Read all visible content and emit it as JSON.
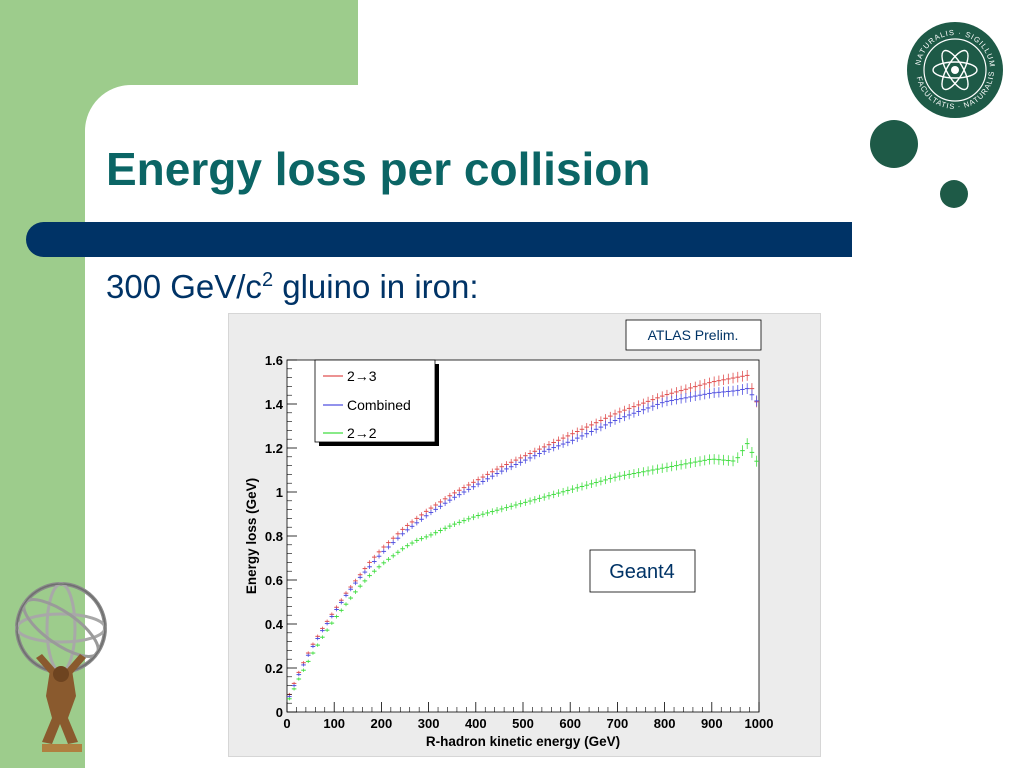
{
  "slide": {
    "title": "Energy loss per collision",
    "subtitle_main": "300 GeV/c",
    "subtitle_sup": "2",
    "subtitle_rest": " gluino in iron:",
    "seal_text_top": "NATURALIS · SIGILLUM",
    "seal_text_bottom": "FACULTATIS · NATURALIS",
    "colors": {
      "background": "#9dcc8c",
      "title": "#0b6565",
      "bar": "#003366",
      "dots": "#1e5a47"
    }
  },
  "chart_data": {
    "type": "scatter",
    "xlabel": "R-hadron kinetic energy (GeV)",
    "ylabel": "Energy loss (GeV)",
    "xlim": [
      0,
      1000
    ],
    "ylim": [
      0,
      1.6
    ],
    "xticks": [
      "0",
      "100",
      "200",
      "300",
      "400",
      "500",
      "600",
      "700",
      "800",
      "900",
      "1000"
    ],
    "yticks": [
      "0",
      "0.2",
      "0.4",
      "0.6",
      "0.8",
      "1",
      "1.2",
      "1.4",
      "1.6"
    ],
    "legend_position": "top-left",
    "annotation_top": "ATLAS Prelim.",
    "annotation_mid": "Geant4",
    "series": [
      {
        "name": "2→3",
        "color": "#e05050",
        "x": [
          5,
          25,
          50,
          75,
          100,
          125,
          150,
          175,
          200,
          225,
          250,
          275,
          300,
          350,
          400,
          450,
          500,
          550,
          600,
          650,
          700,
          750,
          800,
          850,
          900,
          950,
          975,
          1000
        ],
        "y": [
          0.08,
          0.18,
          0.29,
          0.38,
          0.46,
          0.54,
          0.61,
          0.68,
          0.74,
          0.79,
          0.84,
          0.88,
          0.92,
          0.99,
          1.05,
          1.11,
          1.16,
          1.21,
          1.26,
          1.31,
          1.36,
          1.4,
          1.44,
          1.47,
          1.5,
          1.52,
          1.53,
          1.38
        ]
      },
      {
        "name": "Combined",
        "color": "#5050e0",
        "x": [
          5,
          25,
          50,
          75,
          100,
          125,
          150,
          175,
          200,
          225,
          250,
          275,
          300,
          350,
          400,
          450,
          500,
          550,
          600,
          650,
          700,
          750,
          800,
          850,
          900,
          950,
          975,
          1000
        ],
        "y": [
          0.07,
          0.17,
          0.28,
          0.37,
          0.45,
          0.53,
          0.6,
          0.66,
          0.72,
          0.77,
          0.82,
          0.86,
          0.9,
          0.97,
          1.03,
          1.09,
          1.14,
          1.19,
          1.23,
          1.28,
          1.33,
          1.37,
          1.41,
          1.43,
          1.45,
          1.46,
          1.47,
          1.4
        ]
      },
      {
        "name": "2→2",
        "color": "#40dd40",
        "x": [
          5,
          25,
          50,
          75,
          100,
          125,
          150,
          175,
          200,
          225,
          250,
          275,
          300,
          350,
          400,
          450,
          500,
          550,
          600,
          650,
          700,
          750,
          800,
          850,
          900,
          950,
          975,
          1000
        ],
        "y": [
          0.06,
          0.15,
          0.25,
          0.34,
          0.42,
          0.49,
          0.56,
          0.62,
          0.67,
          0.71,
          0.75,
          0.78,
          0.8,
          0.85,
          0.89,
          0.92,
          0.95,
          0.98,
          1.01,
          1.04,
          1.07,
          1.09,
          1.11,
          1.13,
          1.15,
          1.14,
          1.22,
          1.12
        ]
      }
    ]
  }
}
